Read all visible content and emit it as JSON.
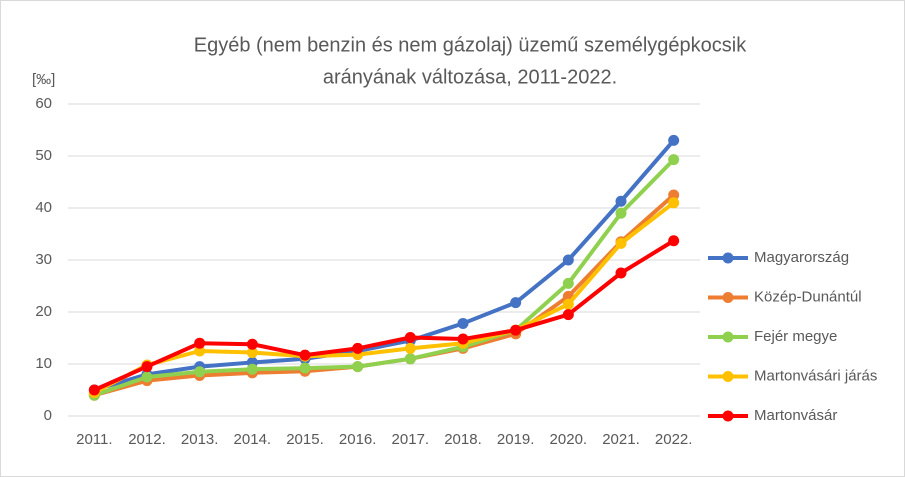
{
  "chart_data": {
    "type": "line",
    "title": [
      "Egyéb (nem benzin és nem gázolaj) üzemű személygépkocsik",
      "arányának változása, 2011-2022."
    ],
    "ylabel": "[‰]",
    "categories": [
      "2011.",
      "2012.",
      "2013.",
      "2014.",
      "2015.",
      "2016.",
      "2017.",
      "2018.",
      "2019.",
      "2020.",
      "2021.",
      "2022."
    ],
    "series": [
      {
        "name": "Magyarország",
        "color": "#4472c4",
        "values": [
          5,
          8,
          9.5,
          10.3,
          11,
          12.5,
          14.5,
          17.8,
          21.8,
          30,
          41.3,
          53
        ]
      },
      {
        "name": "Közép-Dunántúl",
        "color": "#ed7d31",
        "values": [
          4,
          6.8,
          7.8,
          8.3,
          8.6,
          9.5,
          11,
          13,
          15.8,
          23,
          33.5,
          42.5
        ]
      },
      {
        "name": "Fejér megye",
        "color": "#8fd14f",
        "values": [
          4,
          7.5,
          8.5,
          9,
          9.2,
          9.5,
          11,
          13.3,
          16.5,
          25.5,
          39,
          49.3
        ]
      },
      {
        "name": "Martonvásári járás",
        "color": "#ffc000",
        "values": [
          4.5,
          9.8,
          12.5,
          12.2,
          11.5,
          11.8,
          13,
          14,
          16.5,
          21.5,
          33.2,
          41
        ]
      },
      {
        "name": "Martonvásár",
        "color": "#ff0000",
        "values": [
          5,
          9.5,
          14,
          13.8,
          11.7,
          13,
          15.1,
          14.8,
          16.5,
          19.5,
          27.5,
          33.7
        ]
      }
    ],
    "ylim": [
      0,
      60
    ],
    "yticks": [
      0,
      10,
      20,
      30,
      40,
      50,
      60
    ],
    "grid": true,
    "legend": "right"
  }
}
